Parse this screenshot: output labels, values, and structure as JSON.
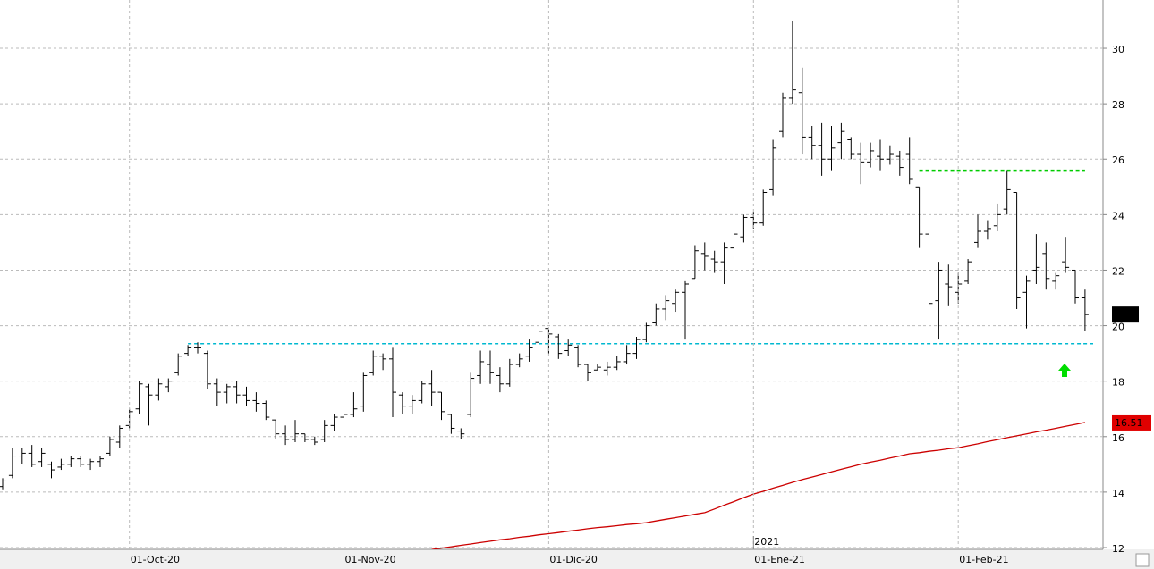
{
  "chart_data": {
    "type": "ohlc",
    "year_label": "2021",
    "categories": [
      null,
      null,
      null,
      null,
      null,
      null,
      null,
      null,
      null,
      null,
      null,
      null,
      null,
      "01-Oct-20",
      null,
      null,
      null,
      null,
      null,
      null,
      null,
      null,
      null,
      null,
      null,
      null,
      null,
      null,
      null,
      null,
      null,
      null,
      null,
      null,
      null,
      "01-Nov-20",
      null,
      null,
      null,
      null,
      null,
      null,
      null,
      null,
      null,
      null,
      null,
      null,
      null,
      null,
      null,
      null,
      null,
      null,
      null,
      null,
      "01-Dic-20",
      null,
      null,
      null,
      null,
      null,
      null,
      null,
      null,
      null,
      null,
      null,
      null,
      null,
      null,
      null,
      null,
      null,
      null,
      null,
      null,
      "01-Ene-21",
      null,
      null,
      null,
      null,
      null,
      null,
      null,
      null,
      null,
      null,
      null,
      null,
      null,
      null,
      null,
      null,
      null,
      null,
      null,
      null,
      "01-Feb-21",
      null,
      null,
      null,
      null,
      null,
      null,
      null,
      null,
      null,
      null,
      null,
      null,
      null
    ],
    "open": [
      14.2,
      14.6,
      15.3,
      15.4,
      15.1,
      15.0,
      14.9,
      15.0,
      15.2,
      15.0,
      15.1,
      15.4,
      15.8,
      16.4,
      17.0,
      17.8,
      17.5,
      17.8,
      18.3,
      19.0,
      19.2,
      19.0,
      17.9,
      17.6,
      17.8,
      17.5,
      17.3,
      17.2,
      16.6,
      16.1,
      15.9,
      16.1,
      15.9,
      15.9,
      16.4,
      16.7,
      16.8,
      17.1,
      18.3,
      18.9,
      18.8,
      17.5,
      17.1,
      17.3,
      17.9,
      17.6,
      16.8,
      16.2,
      16.8,
      18.2,
      18.6,
      18.2,
      17.9,
      18.6,
      18.9,
      19.4,
      19.9,
      19.6,
      19.1,
      19.2,
      18.6,
      18.4,
      18.4,
      18.5,
      18.7,
      19.0,
      19.5,
      20.1,
      20.6,
      20.8,
      21.2,
      21.7,
      22.6,
      22.4,
      22.3,
      22.8,
      23.2,
      23.9,
      23.7,
      24.9,
      27.0,
      28.2,
      28.4,
      26.8,
      26.5,
      26.0,
      26.6,
      26.7,
      26.2,
      25.9,
      26.1,
      26.0,
      26.1,
      26.2,
      25.0,
      23.3,
      20.9,
      21.5,
      21.2,
      21.6,
      23.0,
      23.4,
      23.6,
      24.2,
      24.8,
      21.2,
      22.0,
      22.6,
      21.6,
      22.3,
      22.0,
      21.0
    ],
    "high": [
      14.5,
      15.6,
      15.6,
      15.7,
      15.6,
      15.1,
      15.2,
      15.3,
      15.3,
      15.2,
      15.3,
      16.0,
      16.4,
      17.0,
      18.0,
      17.9,
      18.1,
      18.1,
      19.0,
      19.3,
      19.4,
      19.1,
      18.1,
      17.9,
      18.0,
      17.8,
      17.6,
      17.3,
      16.6,
      16.4,
      16.6,
      16.1,
      16.0,
      16.6,
      16.8,
      16.9,
      17.6,
      18.3,
      19.1,
      19.0,
      19.2,
      17.6,
      17.5,
      18.0,
      18.4,
      17.6,
      16.8,
      16.3,
      18.3,
      19.1,
      19.1,
      18.5,
      18.8,
      19.0,
      19.5,
      20.0,
      19.9,
      19.7,
      19.5,
      19.3,
      18.6,
      18.6,
      18.7,
      18.9,
      19.3,
      19.6,
      20.1,
      20.8,
      21.1,
      21.3,
      21.6,
      22.9,
      23.0,
      22.7,
      23.0,
      23.6,
      24.0,
      24.1,
      24.9,
      26.7,
      28.4,
      31.0,
      29.3,
      27.2,
      27.3,
      27.2,
      27.3,
      26.8,
      26.6,
      26.6,
      26.7,
      26.5,
      26.3,
      26.8,
      25.0,
      23.4,
      22.3,
      22.2,
      21.9,
      22.4,
      24.0,
      23.8,
      24.4,
      25.6,
      24.8,
      21.8,
      23.3,
      23.0,
      21.9,
      23.2,
      22.0,
      21.3
    ],
    "low": [
      14.1,
      14.5,
      15.0,
      14.9,
      14.9,
      14.5,
      14.8,
      14.9,
      14.9,
      14.8,
      14.9,
      15.3,
      15.6,
      16.3,
      16.8,
      16.4,
      17.3,
      17.6,
      18.2,
      18.9,
      19.0,
      17.7,
      17.1,
      17.2,
      17.2,
      17.1,
      16.9,
      16.6,
      15.9,
      15.7,
      15.8,
      15.8,
      15.7,
      15.8,
      16.2,
      16.6,
      16.7,
      16.9,
      18.2,
      18.4,
      16.7,
      16.8,
      16.8,
      17.2,
      17.1,
      16.6,
      16.1,
      15.9,
      16.7,
      17.9,
      17.9,
      17.6,
      17.8,
      18.5,
      18.7,
      19.0,
      19.0,
      18.8,
      18.9,
      18.5,
      18.0,
      18.4,
      18.2,
      18.4,
      18.6,
      18.8,
      19.4,
      20.0,
      20.2,
      20.5,
      19.5,
      21.7,
      22.0,
      21.9,
      21.5,
      22.3,
      23.0,
      23.5,
      23.6,
      24.7,
      26.8,
      28.0,
      26.2,
      26.0,
      25.4,
      25.6,
      26.0,
      26.0,
      25.1,
      25.7,
      25.6,
      25.8,
      25.4,
      25.1,
      22.8,
      20.1,
      19.5,
      20.7,
      20.8,
      21.5,
      22.8,
      23.1,
      23.4,
      24.0,
      20.6,
      19.9,
      21.5,
      21.3,
      21.3,
      21.9,
      20.8,
      19.8
    ],
    "close": [
      14.4,
      15.3,
      15.4,
      15.0,
      15.4,
      14.8,
      15.0,
      15.2,
      15.0,
      15.1,
      15.2,
      15.9,
      16.3,
      16.9,
      17.9,
      17.5,
      17.9,
      18.0,
      18.9,
      19.2,
      19.2,
      17.9,
      17.6,
      17.8,
      17.5,
      17.3,
      17.2,
      16.7,
      16.1,
      15.9,
      16.1,
      15.9,
      15.8,
      16.4,
      16.7,
      16.8,
      17.0,
      18.2,
      18.9,
      18.8,
      17.6,
      17.1,
      17.3,
      17.9,
      17.6,
      16.9,
      16.3,
      16.1,
      18.1,
      18.7,
      18.3,
      17.9,
      18.6,
      18.8,
      19.2,
      19.8,
      19.7,
      19.0,
      19.3,
      18.6,
      18.3,
      18.5,
      18.5,
      18.7,
      19.0,
      19.5,
      20.0,
      20.6,
      20.9,
      21.2,
      21.5,
      22.7,
      22.5,
      22.3,
      22.8,
      23.3,
      23.9,
      23.7,
      24.8,
      26.4,
      28.2,
      28.5,
      26.8,
      26.5,
      26.0,
      26.4,
      27.0,
      26.2,
      25.9,
      26.3,
      26.0,
      26.2,
      25.7,
      25.3,
      23.3,
      20.8,
      22.0,
      21.4,
      21.5,
      22.3,
      23.4,
      23.5,
      24.0,
      24.9,
      21.0,
      21.6,
      22.1,
      21.7,
      21.8,
      22.1,
      21.0,
      20.4
    ],
    "color": "#000000",
    "moving_average": {
      "color": "#cc0000",
      "values": [
        null,
        null,
        null,
        null,
        null,
        null,
        null,
        null,
        null,
        null,
        null,
        null,
        null,
        null,
        null,
        null,
        null,
        null,
        null,
        null,
        null,
        null,
        null,
        null,
        null,
        null,
        null,
        null,
        null,
        null,
        null,
        null,
        null,
        null,
        null,
        null,
        null,
        null,
        null,
        null,
        null,
        null,
        null,
        null,
        11.93,
        11.98,
        12.03,
        12.08,
        12.13,
        12.18,
        12.23,
        12.28,
        12.32,
        12.37,
        12.41,
        12.46,
        12.5,
        12.54,
        12.59,
        12.63,
        12.68,
        12.72,
        12.75,
        12.79,
        12.83,
        12.86,
        12.9,
        12.96,
        13.02,
        13.08,
        13.14,
        13.2,
        13.26,
        13.39,
        13.53,
        13.66,
        13.8,
        13.93,
        14.03,
        14.14,
        14.24,
        14.35,
        14.45,
        14.54,
        14.63,
        14.73,
        14.82,
        14.91,
        15.0,
        15.08,
        15.15,
        15.23,
        15.3,
        15.38,
        15.42,
        15.47,
        15.51,
        15.56,
        15.6,
        15.67,
        15.74,
        15.82,
        15.89,
        15.96,
        16.03,
        16.1,
        16.17,
        16.23,
        16.3,
        16.37,
        16.44,
        16.51
      ]
    },
    "levels": [
      {
        "value": 19.35,
        "color": "#00b8d0"
      },
      {
        "value": 25.6,
        "color": "#00cc00"
      }
    ],
    "ylim": [
      12,
      31.74
    ],
    "yticks": [
      12,
      14,
      16,
      18,
      20,
      22,
      24,
      26,
      28,
      30
    ],
    "grid": true
  }
}
